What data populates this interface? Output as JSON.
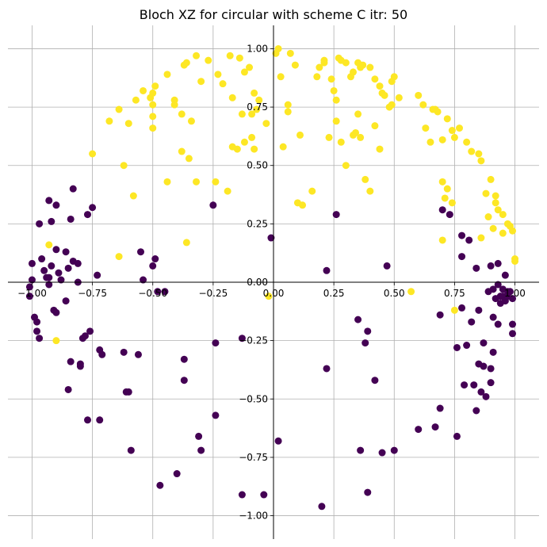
{
  "chart_data": {
    "type": "scatter",
    "title": "Bloch XZ for circular with scheme C itr: 50",
    "xlabel": "",
    "ylabel": "",
    "xlim": [
      -1.1,
      1.1
    ],
    "ylim": [
      -1.1,
      1.1
    ],
    "grid": true,
    "spines": "centered",
    "xticks": [
      -1.0,
      -0.75,
      -0.5,
      -0.25,
      0.0,
      0.25,
      0.5,
      0.75,
      1.0
    ],
    "yticks": [
      -1.0,
      -0.75,
      -0.5,
      -0.25,
      0.0,
      0.25,
      0.5,
      0.75,
      1.0
    ],
    "xtick_labels": [
      "−1.00",
      "−0.75",
      "−0.50",
      "−0.25",
      "0.00",
      "0.25",
      "0.50",
      "0.75",
      "1.00"
    ],
    "ytick_labels": [
      "−1.00",
      "−0.75",
      "−0.50",
      "−0.25",
      "0.00",
      "0.25",
      "0.50",
      "0.75",
      "1.00"
    ],
    "colors": {
      "class_0": "#440154",
      "class_1": "#fde725"
    },
    "series": [
      {
        "color": "#fde725",
        "points": [
          [
            -0.75,
            0.55
          ],
          [
            -0.68,
            0.69
          ],
          [
            -0.62,
            0.5
          ],
          [
            -0.6,
            0.68
          ],
          [
            -0.57,
            0.78
          ],
          [
            -0.54,
            0.82
          ],
          [
            -0.51,
            0.79
          ],
          [
            -0.5,
            0.81
          ],
          [
            -0.5,
            0.76
          ],
          [
            -0.49,
            0.84
          ],
          [
            -0.5,
            0.71
          ],
          [
            -0.5,
            0.66
          ],
          [
            -0.44,
            0.89
          ],
          [
            -0.41,
            0.78
          ],
          [
            -0.41,
            0.76
          ],
          [
            -0.38,
            0.72
          ],
          [
            -0.37,
            0.93
          ],
          [
            -0.36,
            0.94
          ],
          [
            -0.34,
            0.69
          ],
          [
            -0.32,
            0.97
          ],
          [
            -0.3,
            0.86
          ],
          [
            -0.27,
            0.95
          ],
          [
            -0.23,
            0.89
          ],
          [
            -0.21,
            0.85
          ],
          [
            -0.18,
            0.97
          ],
          [
            -0.17,
            0.79
          ],
          [
            -0.14,
            0.96
          ],
          [
            -0.12,
            0.9
          ],
          [
            -0.1,
            0.92
          ],
          [
            -0.08,
            0.81
          ],
          [
            -0.06,
            0.78
          ],
          [
            -0.07,
            0.74
          ],
          [
            -0.09,
            0.72
          ],
          [
            -0.13,
            0.72
          ],
          [
            -0.03,
            0.68
          ],
          [
            -0.09,
            0.62
          ],
          [
            -0.12,
            0.6
          ],
          [
            -0.15,
            0.57
          ],
          [
            -0.17,
            0.58
          ],
          [
            -0.08,
            0.57
          ],
          [
            -0.38,
            0.56
          ],
          [
            -0.35,
            0.53
          ],
          [
            -0.32,
            0.43
          ],
          [
            -0.24,
            0.43
          ],
          [
            -0.19,
            0.39
          ],
          [
            -0.44,
            0.43
          ],
          [
            -0.58,
            0.37
          ],
          [
            -0.64,
            0.74
          ],
          [
            -0.64,
            0.11
          ],
          [
            -0.93,
            0.16
          ],
          [
            -0.9,
            -0.25
          ],
          [
            -0.36,
            0.17
          ],
          [
            -0.02,
            -0.06
          ],
          [
            0.01,
            0.98
          ],
          [
            0.02,
            1.0
          ],
          [
            0.03,
            0.88
          ],
          [
            0.06,
            0.76
          ],
          [
            0.06,
            0.73
          ],
          [
            0.07,
            0.98
          ],
          [
            0.09,
            0.93
          ],
          [
            0.11,
            0.63
          ],
          [
            0.04,
            0.58
          ],
          [
            0.1,
            0.34
          ],
          [
            0.12,
            0.33
          ],
          [
            0.16,
            0.39
          ],
          [
            0.19,
            0.92
          ],
          [
            0.21,
            0.94
          ],
          [
            0.24,
            0.87
          ],
          [
            0.25,
            0.82
          ],
          [
            0.26,
            0.78
          ],
          [
            0.27,
            0.96
          ],
          [
            0.28,
            0.95
          ],
          [
            0.3,
            0.94
          ],
          [
            0.32,
            0.88
          ],
          [
            0.33,
            0.9
          ],
          [
            0.35,
            0.94
          ],
          [
            0.36,
            0.92
          ],
          [
            0.37,
            0.93
          ],
          [
            0.4,
            0.92
          ],
          [
            0.42,
            0.87
          ],
          [
            0.44,
            0.84
          ],
          [
            0.45,
            0.81
          ],
          [
            0.46,
            0.8
          ],
          [
            0.5,
            0.88
          ],
          [
            0.49,
            0.86
          ],
          [
            0.48,
            0.75
          ],
          [
            0.49,
            0.76
          ],
          [
            0.35,
            0.72
          ],
          [
            0.26,
            0.69
          ],
          [
            0.28,
            0.6
          ],
          [
            0.3,
            0.5
          ],
          [
            0.33,
            0.63
          ],
          [
            0.34,
            0.64
          ],
          [
            0.36,
            0.62
          ],
          [
            0.38,
            0.44
          ],
          [
            0.4,
            0.39
          ],
          [
            0.42,
            0.67
          ],
          [
            0.44,
            0.57
          ],
          [
            0.52,
            0.79
          ],
          [
            0.6,
            0.8
          ],
          [
            0.62,
            0.76
          ],
          [
            0.63,
            0.66
          ],
          [
            0.65,
            0.6
          ],
          [
            0.66,
            0.74
          ],
          [
            0.68,
            0.73
          ],
          [
            0.7,
            0.61
          ],
          [
            0.72,
            0.7
          ],
          [
            0.74,
            0.65
          ],
          [
            0.75,
            0.62
          ],
          [
            0.77,
            0.66
          ],
          [
            0.8,
            0.6
          ],
          [
            0.82,
            0.56
          ],
          [
            0.85,
            0.55
          ],
          [
            0.86,
            0.52
          ],
          [
            0.88,
            0.38
          ],
          [
            0.9,
            0.44
          ],
          [
            0.92,
            0.37
          ],
          [
            0.92,
            0.34
          ],
          [
            0.93,
            0.31
          ],
          [
            0.95,
            0.29
          ],
          [
            0.95,
            0.21
          ],
          [
            0.97,
            0.25
          ],
          [
            0.98,
            0.24
          ],
          [
            0.99,
            0.22
          ],
          [
            1.0,
            0.1
          ],
          [
            1.0,
            0.09
          ],
          [
            0.7,
            0.43
          ],
          [
            0.72,
            0.4
          ],
          [
            0.74,
            0.34
          ],
          [
            0.7,
            0.18
          ],
          [
            0.57,
            -0.04
          ],
          [
            0.75,
            -0.12
          ],
          [
            0.67,
            0.74
          ],
          [
            0.71,
            0.36
          ],
          [
            0.21,
            0.95
          ],
          [
            0.23,
            0.62
          ],
          [
            0.18,
            0.88
          ],
          [
            0.86,
            0.19
          ],
          [
            0.89,
            0.28
          ],
          [
            0.91,
            0.23
          ]
        ]
      },
      {
        "color": "#440154",
        "points": [
          [
            -1.01,
            -0.06
          ],
          [
            -1.01,
            -0.02
          ],
          [
            -1.0,
            0.01
          ],
          [
            -1.0,
            0.08
          ],
          [
            -0.99,
            -0.15
          ],
          [
            -0.98,
            -0.21
          ],
          [
            -0.97,
            -0.24
          ],
          [
            -0.97,
            0.25
          ],
          [
            -0.96,
            0.1
          ],
          [
            -0.95,
            0.05
          ],
          [
            -0.94,
            0.02
          ],
          [
            -0.93,
            -0.01
          ],
          [
            -0.93,
            0.35
          ],
          [
            -0.92,
            0.26
          ],
          [
            -0.91,
            -0.12
          ],
          [
            -0.9,
            -0.13
          ],
          [
            -0.9,
            0.33
          ],
          [
            -0.9,
            0.14
          ],
          [
            -0.89,
            0.04
          ],
          [
            -0.86,
            0.13
          ],
          [
            -0.86,
            -0.08
          ],
          [
            -0.85,
            0.06
          ],
          [
            -0.84,
            0.27
          ],
          [
            -0.83,
            0.4
          ],
          [
            -0.83,
            0.09
          ],
          [
            -0.81,
            0.08
          ],
          [
            -0.81,
            0.0
          ],
          [
            -0.79,
            -0.24
          ],
          [
            -0.78,
            -0.23
          ],
          [
            -0.77,
            0.29
          ],
          [
            -0.76,
            -0.21
          ],
          [
            -0.75,
            0.32
          ],
          [
            -0.73,
            0.03
          ],
          [
            -0.72,
            -0.29
          ],
          [
            -0.71,
            -0.31
          ],
          [
            -0.72,
            -0.59
          ],
          [
            -0.77,
            -0.59
          ],
          [
            -0.84,
            -0.34
          ],
          [
            -0.85,
            -0.46
          ],
          [
            -0.8,
            -0.36
          ],
          [
            -0.8,
            -0.35
          ],
          [
            -0.62,
            -0.3
          ],
          [
            -0.61,
            -0.47
          ],
          [
            -0.6,
            -0.47
          ],
          [
            -0.59,
            -0.72
          ],
          [
            -0.56,
            -0.31
          ],
          [
            -0.55,
            0.13
          ],
          [
            -0.54,
            0.01
          ],
          [
            -0.5,
            0.07
          ],
          [
            -0.49,
            0.1
          ],
          [
            -0.48,
            -0.04
          ],
          [
            -0.45,
            -0.04
          ],
          [
            -0.47,
            -0.87
          ],
          [
            -0.4,
            -0.82
          ],
          [
            -0.37,
            -0.33
          ],
          [
            -0.37,
            -0.42
          ],
          [
            -0.31,
            -0.66
          ],
          [
            -0.3,
            -0.72
          ],
          [
            -0.24,
            -0.57
          ],
          [
            -0.24,
            -0.26
          ],
          [
            -0.25,
            0.33
          ],
          [
            -0.13,
            -0.24
          ],
          [
            -0.13,
            -0.91
          ],
          [
            -0.04,
            -0.91
          ],
          [
            -0.01,
            0.19
          ],
          [
            0.02,
            -0.68
          ],
          [
            0.2,
            -0.96
          ],
          [
            0.22,
            0.05
          ],
          [
            0.22,
            -0.37
          ],
          [
            0.26,
            0.29
          ],
          [
            0.35,
            -0.16
          ],
          [
            0.36,
            -0.72
          ],
          [
            0.38,
            -0.26
          ],
          [
            0.39,
            -0.21
          ],
          [
            0.39,
            -0.9
          ],
          [
            0.42,
            -0.42
          ],
          [
            0.45,
            -0.73
          ],
          [
            0.47,
            0.07
          ],
          [
            0.5,
            -0.72
          ],
          [
            0.6,
            -0.63
          ],
          [
            0.67,
            -0.62
          ],
          [
            0.69,
            -0.54
          ],
          [
            0.69,
            -0.14
          ],
          [
            0.7,
            0.31
          ],
          [
            0.73,
            0.29
          ],
          [
            0.76,
            -0.28
          ],
          [
            0.76,
            -0.66
          ],
          [
            0.78,
            0.2
          ],
          [
            0.78,
            -0.11
          ],
          [
            0.78,
            0.11
          ],
          [
            0.79,
            -0.44
          ],
          [
            0.8,
            -0.27
          ],
          [
            0.81,
            0.18
          ],
          [
            0.82,
            -0.17
          ],
          [
            0.83,
            -0.44
          ],
          [
            0.84,
            0.06
          ],
          [
            0.84,
            -0.55
          ],
          [
            0.85,
            -0.12
          ],
          [
            0.85,
            -0.35
          ],
          [
            0.86,
            -0.47
          ],
          [
            0.87,
            -0.26
          ],
          [
            0.87,
            -0.36
          ],
          [
            0.88,
            -0.49
          ],
          [
            0.89,
            -0.04
          ],
          [
            0.9,
            0.07
          ],
          [
            0.9,
            -0.37
          ],
          [
            0.9,
            -0.43
          ],
          [
            0.91,
            -0.15
          ],
          [
            0.91,
            -0.3
          ],
          [
            0.91,
            -0.03
          ],
          [
            0.92,
            -0.07
          ],
          [
            0.93,
            -0.01
          ],
          [
            0.93,
            0.08
          ],
          [
            0.93,
            -0.18
          ],
          [
            0.94,
            -0.06
          ],
          [
            0.94,
            -0.09
          ],
          [
            0.95,
            -0.03
          ],
          [
            0.95,
            -0.06
          ],
          [
            0.96,
            0.03
          ],
          [
            0.96,
            -0.08
          ],
          [
            0.97,
            -0.04
          ],
          [
            0.97,
            -0.06
          ],
          [
            0.98,
            -0.04
          ],
          [
            0.99,
            -0.07
          ],
          [
            0.99,
            -0.22
          ],
          [
            0.99,
            -0.18
          ],
          [
            -0.98,
            -0.17
          ],
          [
            -0.93,
            0.02
          ],
          [
            -0.88,
            0.01
          ],
          [
            -0.92,
            0.07
          ]
        ]
      }
    ]
  }
}
